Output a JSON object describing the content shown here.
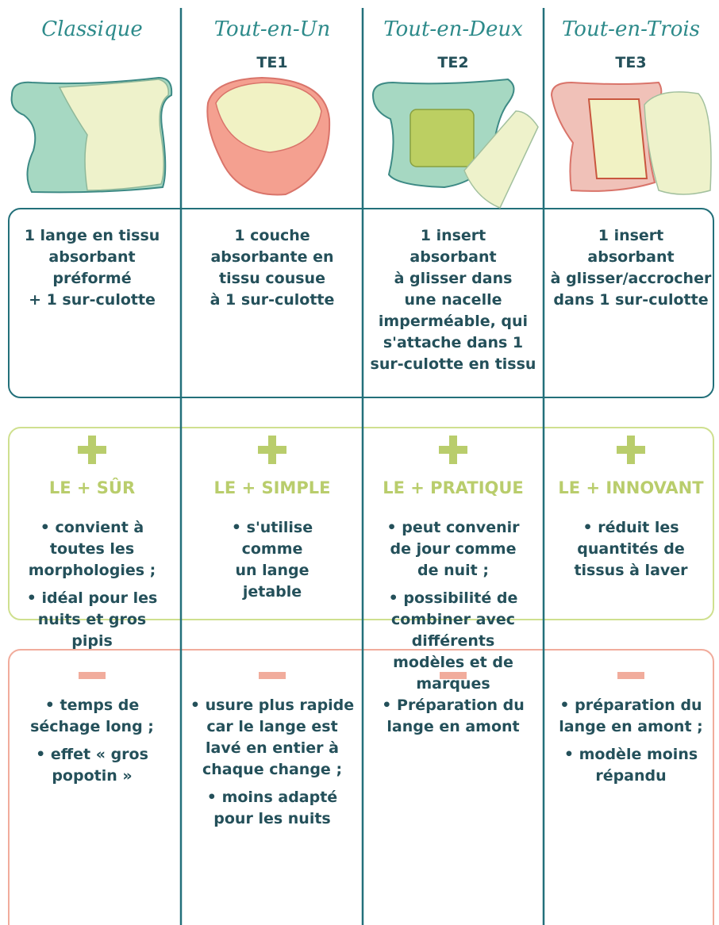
{
  "columns": [
    {
      "name": "Classique",
      "code": null,
      "description": [
        "1 lange en tissu",
        "absorbant",
        "préformé",
        "+ 1 sur-culotte"
      ],
      "pros": {
        "title": "LE + SÛR",
        "items": [
          [
            "• convient à",
            "toutes les",
            "morphologies ;"
          ],
          [
            "• idéal pour les",
            "nuits et gros",
            "pipis"
          ]
        ]
      },
      "cons": [
        [
          "• temps de",
          "séchage long ;"
        ],
        [
          "• effet « gros",
          "popotin »"
        ]
      ]
    },
    {
      "name": "Tout-en-Un",
      "code": "TE1",
      "description": [
        "1 couche",
        "absorbante en",
        "tissu cousue",
        "à 1 sur-culotte"
      ],
      "pros": {
        "title": "LE + SIMPLE",
        "items": [
          [
            "• s'utilise",
            "comme",
            "un lange",
            "jetable"
          ]
        ]
      },
      "cons": [
        [
          "• usure plus rapide",
          "car le lange est",
          "lavé en entier à",
          "chaque change ;"
        ],
        [
          "• moins adapté",
          "pour les nuits"
        ]
      ]
    },
    {
      "name": "Tout-en-Deux",
      "code": "TE2",
      "description": [
        "1 insert",
        "absorbant",
        "à glisser dans",
        "une nacelle",
        "imperméable, qui",
        "s'attache dans 1",
        "sur-culotte en tissu"
      ],
      "pros": {
        "title": "LE + PRATIQUE",
        "items": [
          [
            "• peut convenir",
            "de jour comme",
            "de nuit ;"
          ],
          [
            "• possibilité de",
            "combiner avec",
            "différents",
            "modèles et de",
            "marques"
          ]
        ]
      },
      "cons": [
        [
          "• Préparation du",
          "lange en amont"
        ]
      ]
    },
    {
      "name": "Tout-en-Trois",
      "code": "TE3",
      "description": [
        "1 insert",
        "absorbant",
        "à glisser/accrocher",
        "dans 1 sur-culotte"
      ],
      "pros": {
        "title": "LE + INNOVANT",
        "items": [
          [
            "• réduit les",
            "quantités de",
            "tissus à laver"
          ]
        ]
      },
      "cons": [
        [
          "• préparation du",
          "lange en amont ;"
        ],
        [
          "• modèle moins",
          "répandu"
        ]
      ]
    }
  ]
}
